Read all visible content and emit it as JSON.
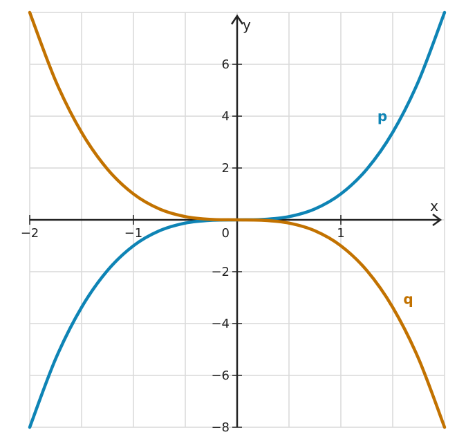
{
  "chart_data": {
    "type": "line",
    "title": "",
    "xlabel": "x",
    "ylabel": "y",
    "xlim": [
      -2,
      2
    ],
    "ylim": [
      -8,
      8
    ],
    "grid": true,
    "grid_x": [
      -2,
      -1.5,
      -1,
      -0.5,
      0,
      0.5,
      1,
      1.5,
      2
    ],
    "grid_y": [
      -8,
      -6,
      -4,
      -2,
      0,
      2,
      4,
      6,
      8
    ],
    "x_ticks": [
      {
        "value": -2,
        "label": "−2"
      },
      {
        "value": -1,
        "label": "−1"
      },
      {
        "value": 1,
        "label": "1"
      }
    ],
    "y_ticks": [
      {
        "value": -8,
        "label": "−8"
      },
      {
        "value": -6,
        "label": "−6"
      },
      {
        "value": -4,
        "label": "−4"
      },
      {
        "value": -2,
        "label": "−2"
      },
      {
        "value": 2,
        "label": "2"
      },
      {
        "value": 4,
        "label": "4"
      },
      {
        "value": 6,
        "label": "6"
      }
    ],
    "origin_label": "0",
    "series": [
      {
        "name": "p",
        "color": "#0e84b5",
        "x": [
          -2,
          -1.75,
          -1.5,
          -1.25,
          -1,
          -0.75,
          -0.5,
          -0.25,
          0,
          0.25,
          0.5,
          0.75,
          1,
          1.25,
          1.5,
          1.75,
          2
        ],
        "y": [
          -8,
          -5.36,
          -3.375,
          -1.953,
          -1,
          -0.422,
          -0.125,
          -0.016,
          0,
          0.016,
          0.125,
          0.422,
          1,
          1.953,
          3.375,
          5.36,
          8
        ],
        "label_at": [
          1.4,
          4
        ]
      },
      {
        "name": "q",
        "color": "#c27200",
        "x": [
          -2,
          -1.75,
          -1.5,
          -1.25,
          -1,
          -0.75,
          -0.5,
          -0.25,
          0,
          0.25,
          0.5,
          0.75,
          1,
          1.25,
          1.5,
          1.75,
          2
        ],
        "y": [
          8,
          5.36,
          3.375,
          1.953,
          1,
          0.422,
          0.125,
          0.016,
          0,
          -0.016,
          -0.125,
          -0.422,
          -1,
          -1.953,
          -3.375,
          -5.36,
          -8
        ],
        "label_at": [
          1.65,
          -3.05
        ]
      }
    ]
  }
}
